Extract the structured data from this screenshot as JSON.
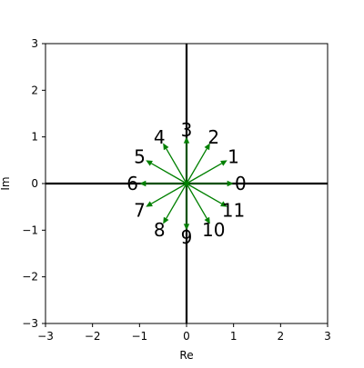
{
  "chart_data": {
    "type": "scatter",
    "title": "",
    "xlabel": "Re",
    "ylabel": "Im",
    "xlim": [
      -3,
      3
    ],
    "ylim": [
      -3,
      3
    ],
    "xticks": [
      -3,
      -2,
      -1,
      0,
      1,
      2,
      3
    ],
    "yticks": [
      -3,
      -2,
      -1,
      0,
      1,
      2,
      3
    ],
    "grid": false,
    "vector_color": "#008000",
    "axis_line_color": "#000000",
    "vectors": [
      {
        "label": "0",
        "x": 1.0,
        "y": 0.0
      },
      {
        "label": "1",
        "x": 0.866,
        "y": 0.5
      },
      {
        "label": "2",
        "x": 0.5,
        "y": 0.866
      },
      {
        "label": "3",
        "x": 0.0,
        "y": 1.0
      },
      {
        "label": "4",
        "x": -0.5,
        "y": 0.866
      },
      {
        "label": "5",
        "x": -0.866,
        "y": 0.5
      },
      {
        "label": "6",
        "x": -1.0,
        "y": 0.0
      },
      {
        "label": "7",
        "x": -0.866,
        "y": -0.5
      },
      {
        "label": "8",
        "x": -0.5,
        "y": -0.866
      },
      {
        "label": "9",
        "x": 0.0,
        "y": -1.0
      },
      {
        "label": "10",
        "x": 0.5,
        "y": -0.866
      },
      {
        "label": "11",
        "x": 0.866,
        "y": -0.5
      }
    ]
  }
}
